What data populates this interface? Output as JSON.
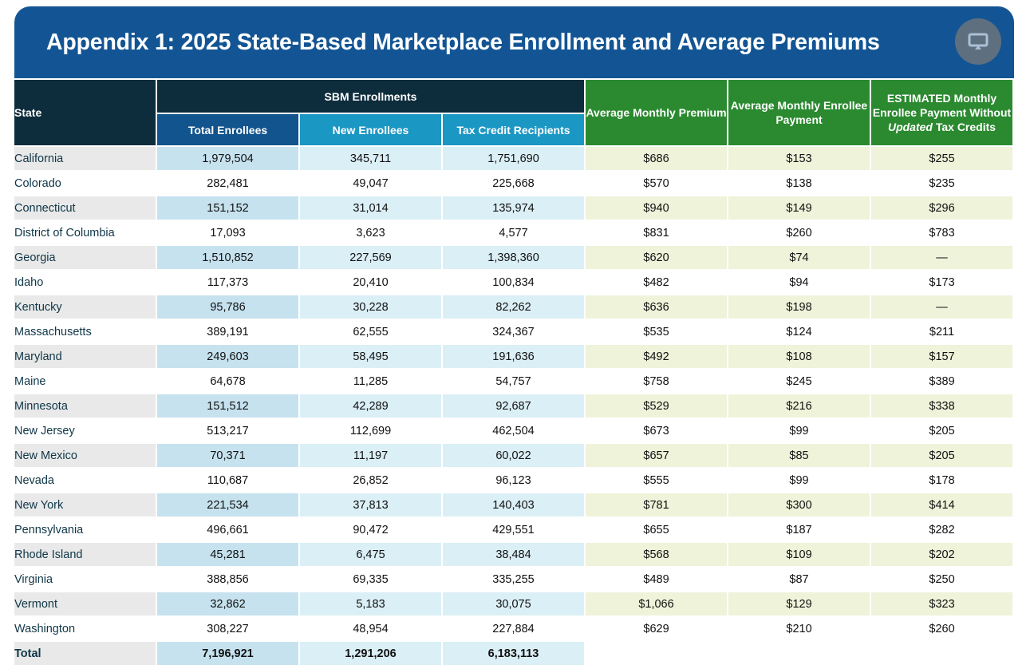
{
  "title": "Appendix 1: 2025 State-Based Marketplace Enrollment and Average Premiums",
  "present_button": {
    "icon": "monitor-icon"
  },
  "colors": {
    "banner": "#135594",
    "header_dark": "#0d2c3c",
    "header_total": "#12548d",
    "header_light_blue": "#1b97c4",
    "header_green": "#2b8a30"
  },
  "headers": {
    "state": "State",
    "sbm_group": "SBM Enrollments",
    "total_enrollees": "Total Enrollees",
    "new_enrollees": "New Enrollees",
    "tax_credit_recipients": "Tax Credit Recipients",
    "avg_premium": "Average Monthly Premium",
    "avg_payment": "Average Monthly Enrollee Payment",
    "estimated_pre": "ESTIMATED Monthly Enrollee Payment Without ",
    "estimated_em": "Updated",
    "estimated_post": " Tax Credits"
  },
  "rows": [
    {
      "state": "California",
      "total": "1,979,504",
      "new": "345,711",
      "tax": "1,751,690",
      "premium": "$686",
      "payment": "$153",
      "estimated": "$255"
    },
    {
      "state": "Colorado",
      "total": "282,481",
      "new": "49,047",
      "tax": "225,668",
      "premium": "$570",
      "payment": "$138",
      "estimated": "$235"
    },
    {
      "state": "Connecticut",
      "total": "151,152",
      "new": "31,014",
      "tax": "135,974",
      "premium": "$940",
      "payment": "$149",
      "estimated": "$296"
    },
    {
      "state": "District of Columbia",
      "total": "17,093",
      "new": "3,623",
      "tax": "4,577",
      "premium": "$831",
      "payment": "$260",
      "estimated": "$783"
    },
    {
      "state": "Georgia",
      "total": "1,510,852",
      "new": "227,569",
      "tax": "1,398,360",
      "premium": "$620",
      "payment": "$74",
      "estimated": "—"
    },
    {
      "state": "Idaho",
      "total": "117,373",
      "new": "20,410",
      "tax": "100,834",
      "premium": "$482",
      "payment": "$94",
      "estimated": "$173"
    },
    {
      "state": "Kentucky",
      "total": "95,786",
      "new": "30,228",
      "tax": "82,262",
      "premium": "$636",
      "payment": "$198",
      "estimated": "—"
    },
    {
      "state": "Massachusetts",
      "total": "389,191",
      "new": "62,555",
      "tax": "324,367",
      "premium": "$535",
      "payment": "$124",
      "estimated": "$211"
    },
    {
      "state": "Maryland",
      "total": "249,603",
      "new": "58,495",
      "tax": "191,636",
      "premium": "$492",
      "payment": "$108",
      "estimated": "$157"
    },
    {
      "state": "Maine",
      "total": "64,678",
      "new": "11,285",
      "tax": "54,757",
      "premium": "$758",
      "payment": "$245",
      "estimated": "$389"
    },
    {
      "state": "Minnesota",
      "total": "151,512",
      "new": "42,289",
      "tax": "92,687",
      "premium": "$529",
      "payment": "$216",
      "estimated": "$338"
    },
    {
      "state": "New Jersey",
      "total": "513,217",
      "new": "112,699",
      "tax": "462,504",
      "premium": "$673",
      "payment": "$99",
      "estimated": "$205"
    },
    {
      "state": "New Mexico",
      "total": "70,371",
      "new": "11,197",
      "tax": "60,022",
      "premium": "$657",
      "payment": "$85",
      "estimated": "$205"
    },
    {
      "state": "Nevada",
      "total": "110,687",
      "new": "26,852",
      "tax": "96,123",
      "premium": "$555",
      "payment": "$99",
      "estimated": "$178"
    },
    {
      "state": "New York",
      "total": "221,534",
      "new": "37,813",
      "tax": "140,403",
      "premium": "$781",
      "payment": "$300",
      "estimated": "$414"
    },
    {
      "state": "Pennsylvania",
      "total": "496,661",
      "new": "90,472",
      "tax": "429,551",
      "premium": "$655",
      "payment": "$187",
      "estimated": "$282"
    },
    {
      "state": "Rhode Island",
      "total": "45,281",
      "new": "6,475",
      "tax": "38,484",
      "premium": "$568",
      "payment": "$109",
      "estimated": "$202"
    },
    {
      "state": "Virginia",
      "total": "388,856",
      "new": "69,335",
      "tax": "335,255",
      "premium": "$489",
      "payment": "$87",
      "estimated": "$250"
    },
    {
      "state": "Vermont",
      "total": "32,862",
      "new": "5,183",
      "tax": "30,075",
      "premium": "$1,066",
      "payment": "$129",
      "estimated": "$323"
    },
    {
      "state": "Washington",
      "total": "308,227",
      "new": "48,954",
      "tax": "227,884",
      "premium": "$629",
      "payment": "$210",
      "estimated": "$260"
    }
  ],
  "total_row": {
    "state": "Total",
    "total": "7,196,921",
    "new": "1,291,206",
    "tax": "6,183,113",
    "premium": "",
    "payment": "",
    "estimated": ""
  }
}
